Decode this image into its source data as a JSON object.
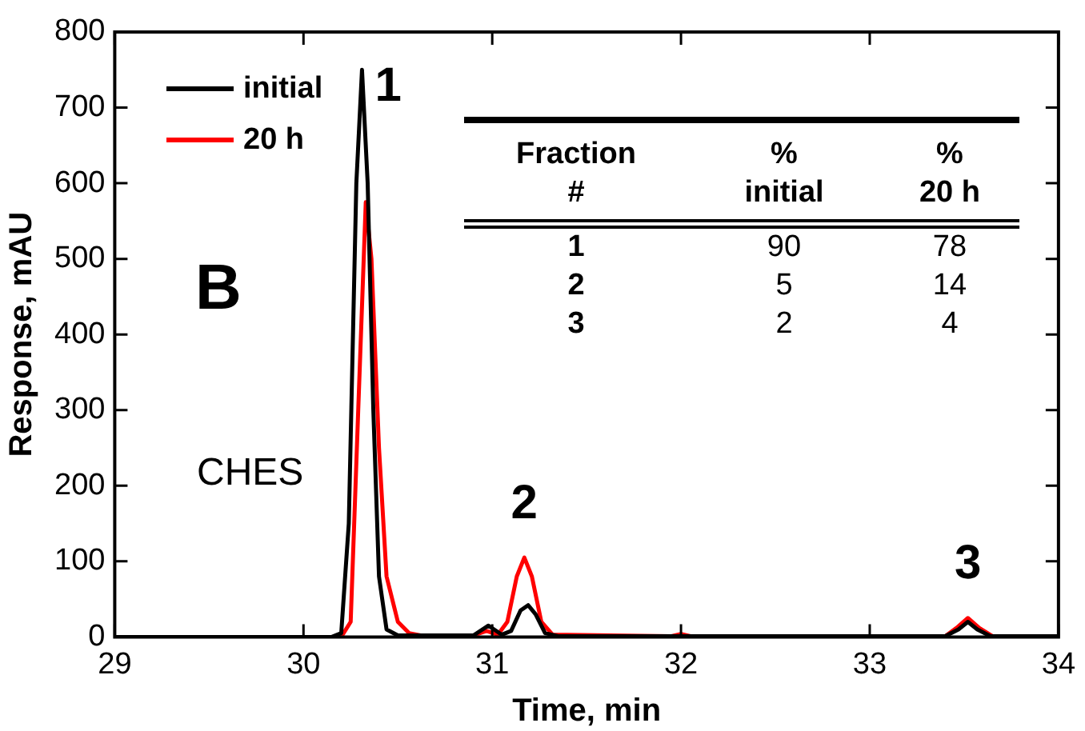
{
  "chart_data": {
    "type": "line",
    "xlabel": "Time, min",
    "ylabel": "Response, mAU",
    "xlim": [
      29,
      34
    ],
    "xticks": [
      29,
      30,
      31,
      32,
      33,
      34
    ],
    "ylim": [
      0,
      800
    ],
    "yticks": [
      0,
      100,
      200,
      300,
      400,
      500,
      600,
      700,
      800
    ],
    "grid": false,
    "legend": "top left",
    "marker": "none",
    "line_style": "solid",
    "series": [
      {
        "name": "initial",
        "color": "#000000",
        "x": [
          29,
          30.15,
          30.2,
          30.24,
          30.28,
          30.31,
          30.34,
          30.37,
          30.4,
          30.44,
          30.5,
          30.9,
          30.98,
          31.05,
          31.1,
          31.15,
          31.19,
          31.23,
          31.28,
          31.35,
          33.4,
          33.47,
          33.52,
          33.57,
          33.64,
          34
        ],
        "values": [
          0,
          0,
          5,
          150,
          600,
          750,
          600,
          300,
          80,
          10,
          2,
          2,
          15,
          3,
          8,
          35,
          42,
          30,
          5,
          1,
          1,
          10,
          20,
          10,
          1,
          1
        ]
      },
      {
        "name": "20 h",
        "color": "#ff0000",
        "x": [
          29,
          30.2,
          30.25,
          30.29,
          30.33,
          30.36,
          30.4,
          30.44,
          30.5,
          30.56,
          30.62,
          30.9,
          30.97,
          31.03,
          31.08,
          31.13,
          31.17,
          31.21,
          31.26,
          31.32,
          31.95,
          32,
          32.05,
          33.4,
          33.46,
          33.52,
          33.58,
          33.65
        ],
        "values": [
          0,
          0,
          20,
          300,
          575,
          500,
          250,
          80,
          20,
          5,
          2,
          2,
          8,
          3,
          20,
          80,
          105,
          80,
          20,
          3,
          1,
          4,
          1,
          1,
          12,
          25,
          12,
          1
        ]
      }
    ],
    "annotations": [
      {
        "text": "1",
        "x": 30.31,
        "y": 750
      },
      {
        "text": "2",
        "x": 31.17,
        "y": 105
      },
      {
        "text": "3",
        "x": 33.52,
        "y": 25
      },
      "B",
      "CHES",
      "Fraction\n#",
      "%\ninitial",
      "%\n20 h",
      "1",
      "90",
      "78",
      "2",
      "5",
      "14",
      "3",
      "2",
      "4"
    ]
  }
}
